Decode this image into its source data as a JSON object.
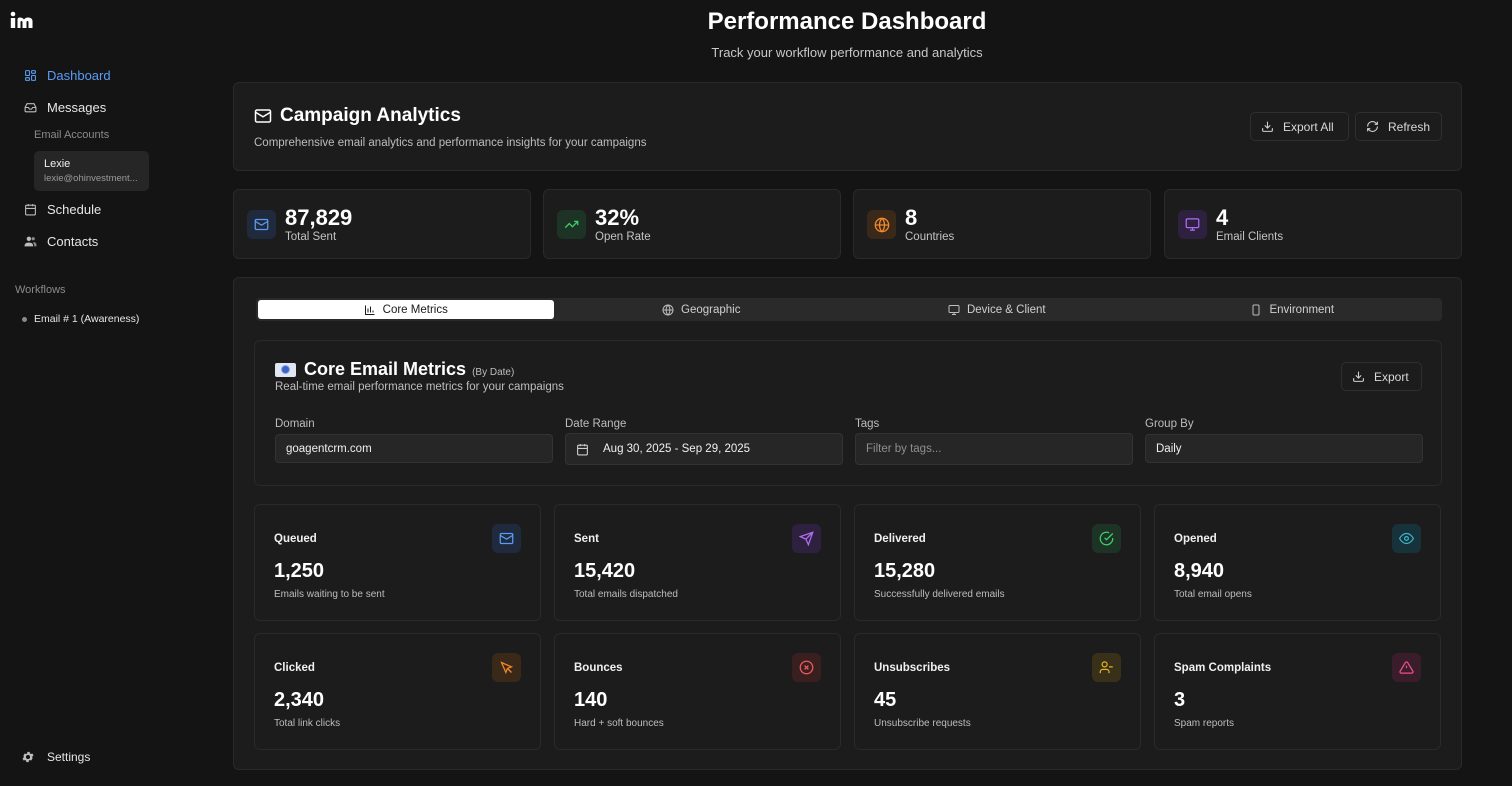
{
  "sidebar": {
    "nav": [
      {
        "label": "Dashboard",
        "icon": "dashboard-grid-icon",
        "active": true
      },
      {
        "label": "Messages",
        "icon": "inbox-icon"
      },
      {
        "label": "Schedule",
        "icon": "calendar-icon"
      },
      {
        "label": "Contacts",
        "icon": "users-icon"
      }
    ],
    "email_accounts_label": "Email Accounts",
    "account": {
      "name": "Lexie",
      "email": "lexie@ohinvestment..."
    },
    "workflows_label": "Workflows",
    "workflow_item": "Email # 1 (Awareness)",
    "settings_label": "Settings"
  },
  "header": {
    "title": "Performance Dashboard",
    "subtitle": "Track your workflow performance and analytics"
  },
  "campaign": {
    "title": "Campaign Analytics",
    "subtitle": "Comprehensive email analytics and performance insights for your campaigns",
    "export_all": "Export All",
    "refresh": "Refresh"
  },
  "stats": [
    {
      "value": "87,829",
      "label": "Total Sent",
      "icon": "mail-icon",
      "color": "#5c9cf5"
    },
    {
      "value": "32%",
      "label": "Open Rate",
      "icon": "trending-up-icon",
      "color": "#3fcf6b"
    },
    {
      "value": "8",
      "label": "Countries",
      "icon": "globe-icon",
      "color": "#f08a2c"
    },
    {
      "value": "4",
      "label": "Email Clients",
      "icon": "monitor-icon",
      "color": "#b06cf0"
    }
  ],
  "tabs": [
    {
      "label": "Core Metrics",
      "icon": "bar-chart-icon",
      "active": true
    },
    {
      "label": "Geographic",
      "icon": "globe-icon"
    },
    {
      "label": "Device & Client",
      "icon": "monitor-icon"
    },
    {
      "label": "Environment",
      "icon": "smartphone-icon"
    }
  ],
  "core": {
    "title": "Core Email Metrics",
    "title_suffix": "(By Date)",
    "subtitle": "Real-time email performance metrics for your campaigns",
    "export": "Export",
    "filters": {
      "domain_label": "Domain",
      "domain_value": "goagentcrm.com",
      "date_label": "Date Range",
      "date_value": "Aug 30, 2025 - Sep 29, 2025",
      "tags_label": "Tags",
      "tags_placeholder": "Filter by tags...",
      "group_label": "Group By",
      "group_value": "Daily"
    }
  },
  "metrics": [
    {
      "title": "Queued",
      "value": "1,250",
      "desc": "Emails waiting to be sent",
      "icon": "mail-icon",
      "color": "#5c9cf5"
    },
    {
      "title": "Sent",
      "value": "15,420",
      "desc": "Total emails dispatched",
      "icon": "send-icon",
      "color": "#b06cf0"
    },
    {
      "title": "Delivered",
      "value": "15,280",
      "desc": "Successfully delivered emails",
      "icon": "check-circle-icon",
      "color": "#3fcf6b"
    },
    {
      "title": "Opened",
      "value": "8,940",
      "desc": "Total email opens",
      "icon": "eye-icon",
      "color": "#38b6c9"
    },
    {
      "title": "Clicked",
      "value": "2,340",
      "desc": "Total link clicks",
      "icon": "cursor-click-icon",
      "color": "#f08a2c"
    },
    {
      "title": "Bounces",
      "value": "140",
      "desc": "Hard + soft bounces",
      "icon": "x-circle-icon",
      "color": "#ef5b5b"
    },
    {
      "title": "Unsubscribes",
      "value": "45",
      "desc": "Unsubscribe requests",
      "icon": "user-minus-icon",
      "color": "#e3b12b"
    },
    {
      "title": "Spam Complaints",
      "value": "3",
      "desc": "Spam reports",
      "icon": "alert-triangle-icon",
      "color": "#ec4f86"
    }
  ]
}
